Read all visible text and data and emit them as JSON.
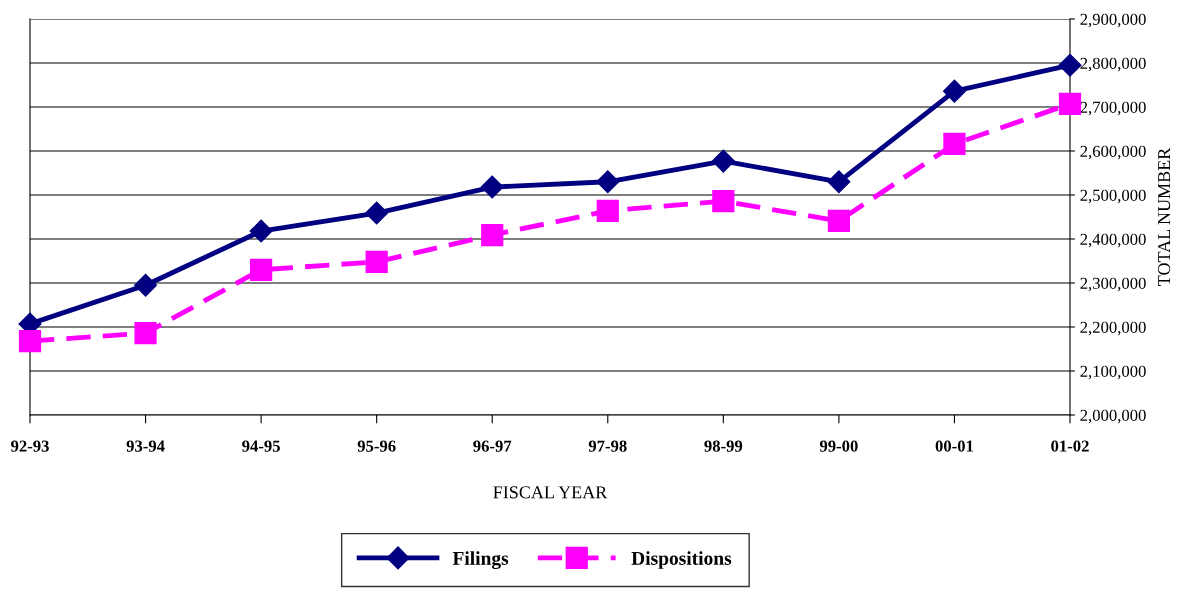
{
  "chart_data": {
    "type": "line",
    "xlabel": "FISCAL YEAR",
    "ylabel": "TOTAL NUMBER",
    "categories": [
      "92-93",
      "93-94",
      "94-95",
      "95-96",
      "96-97",
      "97-98",
      "98-99",
      "99-00",
      "00-01",
      "01-02"
    ],
    "series": [
      {
        "name": "Filings",
        "color": "#000080",
        "marker": "diamond",
        "line_style": "solid",
        "values": [
          2207000,
          2295000,
          2418000,
          2459000,
          2518000,
          2530000,
          2577000,
          2530000,
          2736000,
          2795000
        ]
      },
      {
        "name": "Dispositions",
        "color": "#ff00ff",
        "marker": "square",
        "line_style": "dashed",
        "values": [
          2168000,
          2186000,
          2330000,
          2348000,
          2409000,
          2464000,
          2486000,
          2441000,
          2616000,
          2707000
        ]
      }
    ],
    "ylim": [
      2000000,
      2900000
    ],
    "yticks": [
      {
        "value": 2000000,
        "label": "2,000,000"
      },
      {
        "value": 2100000,
        "label": "2,100,000"
      },
      {
        "value": 2200000,
        "label": "2,200,000"
      },
      {
        "value": 2300000,
        "label": "2,300,000"
      },
      {
        "value": 2400000,
        "label": "2,400,000"
      },
      {
        "value": 2500000,
        "label": "2,500,000"
      },
      {
        "value": 2600000,
        "label": "2,600,000"
      },
      {
        "value": 2700000,
        "label": "2,700,000"
      },
      {
        "value": 2800000,
        "label": "2,800,000"
      },
      {
        "value": 2900000,
        "label": "2,900,000"
      }
    ],
    "grid": "y",
    "legend": "bottom"
  }
}
